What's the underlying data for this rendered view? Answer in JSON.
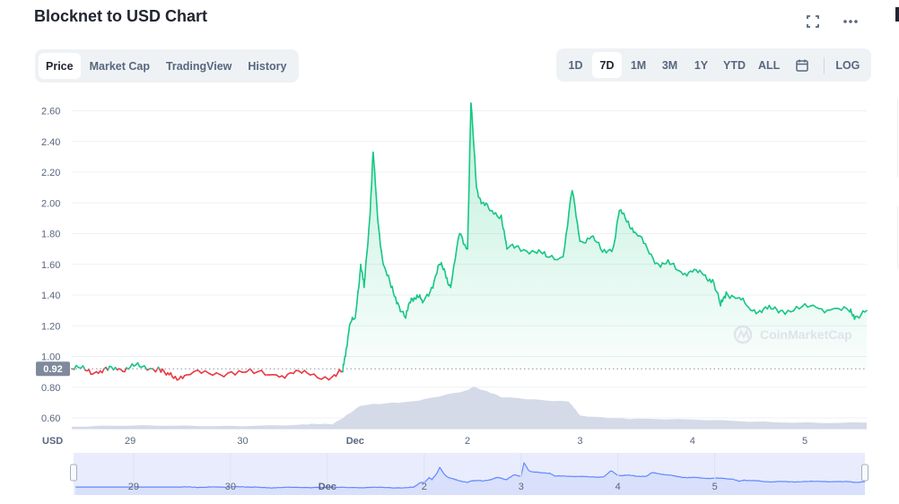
{
  "header": {
    "title": "Blocknet to USD Chart",
    "icons": [
      "fullscreen-icon",
      "more-icon"
    ]
  },
  "tabs": [
    {
      "label": "Price",
      "active": true
    },
    {
      "label": "Market Cap",
      "active": false
    },
    {
      "label": "TradingView",
      "active": false
    },
    {
      "label": "History",
      "active": false
    }
  ],
  "ranges": [
    {
      "label": "1D",
      "active": false
    },
    {
      "label": "7D",
      "active": true
    },
    {
      "label": "1M",
      "active": false
    },
    {
      "label": "3M",
      "active": false
    },
    {
      "label": "1Y",
      "active": false
    },
    {
      "label": "YTD",
      "active": false
    },
    {
      "label": "ALL",
      "active": false
    }
  ],
  "log_label": "LOG",
  "calendar_icon": "calendar-icon",
  "watermark": "CoinMarketCap",
  "chart_data": {
    "type": "line",
    "currency_label": "USD",
    "y_ticks": [
      "0.60",
      "0.80",
      "1.00",
      "1.20",
      "1.40",
      "1.60",
      "1.80",
      "2.00",
      "2.20",
      "2.40",
      "2.60"
    ],
    "ylim": [
      0.53,
      2.65
    ],
    "reference_value": 0.92,
    "reference_label": "0.92",
    "x_ticks": [
      {
        "label": "29",
        "t": 0.5
      },
      {
        "label": "30",
        "t": 1.5
      },
      {
        "label": "Dec",
        "t": 2.5
      },
      {
        "label": "2",
        "t": 3.5
      },
      {
        "label": "3",
        "t": 4.5
      },
      {
        "label": "4",
        "t": 5.5
      },
      {
        "label": "5",
        "t": 6.5
      }
    ],
    "xlim": [
      -0.02,
      7.05
    ],
    "colors": {
      "up": "#16c784",
      "down": "#ea3943",
      "volume": "#cfd6e4",
      "nav_line": "#6188ff",
      "nav_fill": "#e8ecfd"
    },
    "series": [
      {
        "values": [
          [
            -0.02,
            0.92
          ],
          [
            0.1,
            0.91
          ],
          [
            0.2,
            0.9
          ],
          [
            0.3,
            0.91
          ],
          [
            0.4,
            0.92
          ],
          [
            0.5,
            0.93
          ],
          [
            0.6,
            0.93
          ],
          [
            0.75,
            0.93
          ],
          [
            0.82,
            0.88
          ],
          [
            0.9,
            0.87
          ],
          [
            1.0,
            0.88
          ],
          [
            1.2,
            0.89
          ],
          [
            1.4,
            0.9
          ],
          [
            1.6,
            0.89
          ],
          [
            1.8,
            0.88
          ],
          [
            1.95,
            0.89
          ],
          [
            2.1,
            0.88
          ],
          [
            2.3,
            0.87
          ],
          [
            2.39,
            0.9
          ],
          [
            2.42,
            1.05
          ],
          [
            2.45,
            1.2
          ],
          [
            2.5,
            1.25
          ],
          [
            2.55,
            1.6
          ],
          [
            2.58,
            1.45
          ],
          [
            2.63,
            1.9
          ],
          [
            2.66,
            2.33
          ],
          [
            2.7,
            1.9
          ],
          [
            2.75,
            1.6
          ],
          [
            2.82,
            1.45
          ],
          [
            2.88,
            1.35
          ],
          [
            2.95,
            1.25
          ],
          [
            3.0,
            1.38
          ],
          [
            3.05,
            1.4
          ],
          [
            3.1,
            1.35
          ],
          [
            3.18,
            1.45
          ],
          [
            3.25,
            1.6
          ],
          [
            3.3,
            1.55
          ],
          [
            3.35,
            1.45
          ],
          [
            3.43,
            1.8
          ],
          [
            3.5,
            1.7
          ],
          [
            3.53,
            2.65
          ],
          [
            3.58,
            2.1
          ],
          [
            3.63,
            2.0
          ],
          [
            3.7,
            1.95
          ],
          [
            3.8,
            1.92
          ],
          [
            3.85,
            1.7
          ],
          [
            3.95,
            1.72
          ],
          [
            4.1,
            1.68
          ],
          [
            4.2,
            1.65
          ],
          [
            4.35,
            1.65
          ],
          [
            4.43,
            2.08
          ],
          [
            4.5,
            1.75
          ],
          [
            4.6,
            1.78
          ],
          [
            4.7,
            1.68
          ],
          [
            4.8,
            1.72
          ],
          [
            4.85,
            1.95
          ],
          [
            4.93,
            1.88
          ],
          [
            5.0,
            1.8
          ],
          [
            5.1,
            1.7
          ],
          [
            5.2,
            1.6
          ],
          [
            5.3,
            1.6
          ],
          [
            5.4,
            1.55
          ],
          [
            5.5,
            1.55
          ],
          [
            5.6,
            1.53
          ],
          [
            5.68,
            1.5
          ],
          [
            5.75,
            1.33
          ],
          [
            5.8,
            1.42
          ],
          [
            5.9,
            1.38
          ],
          [
            6.0,
            1.32
          ],
          [
            6.1,
            1.3
          ],
          [
            6.2,
            1.31
          ],
          [
            6.3,
            1.3
          ],
          [
            6.45,
            1.31
          ],
          [
            6.6,
            1.32
          ],
          [
            6.75,
            1.31
          ],
          [
            6.9,
            1.29
          ],
          [
            6.95,
            1.26
          ],
          [
            7.05,
            1.3
          ]
        ]
      }
    ],
    "volume": [
      [
        -0.02,
        0.04
      ],
      [
        1.0,
        0.06
      ],
      [
        2.0,
        0.07
      ],
      [
        2.3,
        0.1
      ],
      [
        2.55,
        0.45
      ],
      [
        3.0,
        0.55
      ],
      [
        3.5,
        0.75
      ],
      [
        3.55,
        0.85
      ],
      [
        3.8,
        0.62
      ],
      [
        4.4,
        0.55
      ],
      [
        4.5,
        0.25
      ],
      [
        5.0,
        0.2
      ],
      [
        6.0,
        0.14
      ],
      [
        7.05,
        0.12
      ]
    ]
  }
}
